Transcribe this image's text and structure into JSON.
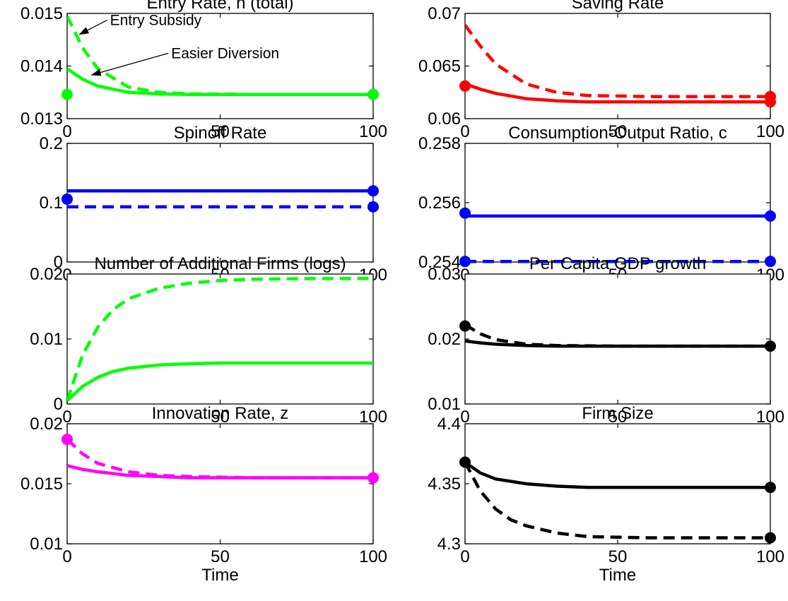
{
  "figure": {
    "xlabel_bottom": "Time"
  },
  "chart_data": [
    {
      "id": "entry-rate",
      "type": "line",
      "title": "Entry Rate, n (total)",
      "xlabel": "",
      "xlim": [
        0,
        100
      ],
      "ylim": [
        0.013,
        0.015
      ],
      "xticks": [
        0,
        50,
        100
      ],
      "xtick_labels": [
        "0",
        "50",
        "100"
      ],
      "yticks": [
        0.013,
        0.014,
        0.015
      ],
      "ytick_labels": [
        "0.013",
        "0.014",
        "0.015"
      ],
      "color": "#00ff00",
      "series": [
        {
          "style": "solid",
          "x": [
            0,
            5,
            10,
            20,
            30,
            40,
            60,
            80,
            100
          ],
          "y": [
            0.01395,
            0.01375,
            0.01362,
            0.0135,
            0.01347,
            0.01346,
            0.01346,
            0.01346,
            0.01346
          ]
        },
        {
          "style": "dashed",
          "x": [
            0,
            5,
            10,
            20,
            30,
            40,
            60,
            80,
            100
          ],
          "y": [
            0.01495,
            0.01435,
            0.01395,
            0.0136,
            0.0135,
            0.01347,
            0.01346,
            0.01346,
            0.01346
          ]
        }
      ],
      "markers": [
        {
          "x": 0,
          "y": 0.01346
        },
        {
          "x": 100,
          "y": 0.01346
        }
      ],
      "annotations": [
        {
          "text": "Entry Subsidy",
          "text_x": 14,
          "text_y": 0.01478,
          "arrow_x": 4,
          "arrow_y": 0.0146
        },
        {
          "text": "Easier Diversion",
          "text_x": 34,
          "text_y": 0.01415,
          "arrow_x": 8,
          "arrow_y": 0.01383
        }
      ]
    },
    {
      "id": "saving-rate",
      "type": "line",
      "title": "Saving Rate",
      "xlabel": "",
      "xlim": [
        0,
        100
      ],
      "ylim": [
        0.06,
        0.07
      ],
      "xticks": [
        0,
        50,
        100
      ],
      "xtick_labels": [
        "0",
        "50",
        "100"
      ],
      "yticks": [
        0.06,
        0.065,
        0.07
      ],
      "ytick_labels": [
        "0.06",
        "0.065",
        "0.07"
      ],
      "color": "#ff0000",
      "series": [
        {
          "style": "solid",
          "x": [
            0,
            5,
            10,
            20,
            30,
            40,
            60,
            80,
            100
          ],
          "y": [
            0.0633,
            0.0628,
            0.0624,
            0.0619,
            0.0617,
            0.0616,
            0.0616,
            0.0616,
            0.0616
          ]
        },
        {
          "style": "dashed",
          "x": [
            0,
            5,
            10,
            20,
            30,
            40,
            60,
            80,
            100
          ],
          "y": [
            0.0689,
            0.0669,
            0.0652,
            0.0633,
            0.0625,
            0.0622,
            0.0621,
            0.0621,
            0.0621
          ]
        }
      ],
      "markers": [
        {
          "x": 0,
          "y": 0.0631
        },
        {
          "x": 100,
          "y": 0.0616
        },
        {
          "x": 100,
          "y": 0.0621
        }
      ],
      "annotations": []
    },
    {
      "id": "spinoff-rate",
      "type": "line",
      "title": "Spinoff Rate",
      "xlabel": "",
      "xlim": [
        0,
        100
      ],
      "ylim": [
        0,
        0.2
      ],
      "xticks": [
        0,
        50,
        100
      ],
      "xtick_labels": [
        "0",
        "50",
        "100"
      ],
      "yticks": [
        0,
        0.1,
        0.2
      ],
      "ytick_labels": [
        "0",
        "0.1",
        "0.2"
      ],
      "color": "#0000ff",
      "series": [
        {
          "style": "solid",
          "x": [
            0,
            100
          ],
          "y": [
            0.12,
            0.12
          ]
        },
        {
          "style": "dashed",
          "x": [
            0,
            100
          ],
          "y": [
            0.093,
            0.093
          ]
        }
      ],
      "markers": [
        {
          "x": 0,
          "y": 0.106
        },
        {
          "x": 100,
          "y": 0.12
        },
        {
          "x": 100,
          "y": 0.093
        }
      ],
      "annotations": []
    },
    {
      "id": "consumption-output",
      "type": "line",
      "title": "Consumption-Output Ratio, c",
      "xlabel": "",
      "xlim": [
        0,
        100
      ],
      "ylim": [
        0.254,
        0.258
      ],
      "xticks": [
        0,
        50,
        100
      ],
      "xtick_labels": [
        "0",
        "50",
        "100"
      ],
      "yticks": [
        0.254,
        0.256,
        0.258
      ],
      "ytick_labels": [
        "0.254",
        "0.256",
        "0.258"
      ],
      "color": "#0000ff",
      "series": [
        {
          "style": "solid",
          "x": [
            0,
            100
          ],
          "y": [
            0.25555,
            0.25555
          ]
        },
        {
          "style": "dashed",
          "x": [
            0,
            100
          ],
          "y": [
            0.25402,
            0.25402
          ]
        }
      ],
      "markers": [
        {
          "x": 0,
          "y": 0.25565
        },
        {
          "x": 100,
          "y": 0.25555
        },
        {
          "x": 0,
          "y": 0.25402
        },
        {
          "x": 100,
          "y": 0.25402
        }
      ],
      "annotations": []
    },
    {
      "id": "additional-firms",
      "type": "line",
      "title": "Number of Additional Firms (logs)",
      "xlabel": "",
      "xlim": [
        0,
        100
      ],
      "ylim": [
        0,
        0.02
      ],
      "xticks": [
        0,
        50,
        100
      ],
      "xtick_labels": [
        "0",
        "50",
        "100"
      ],
      "yticks": [
        0,
        0.01,
        0.02
      ],
      "ytick_labels": [
        "0",
        "0.01",
        "0.02"
      ],
      "color": "#00ff00",
      "series": [
        {
          "style": "solid",
          "x": [
            0,
            5,
            10,
            15,
            20,
            30,
            40,
            50,
            60,
            80,
            100
          ],
          "y": [
            0.0005,
            0.0027,
            0.0041,
            0.005,
            0.0055,
            0.006,
            0.0062,
            0.0063,
            0.0063,
            0.0063,
            0.0063
          ]
        },
        {
          "style": "dashed",
          "x": [
            0,
            5,
            10,
            15,
            20,
            30,
            40,
            50,
            60,
            80,
            100
          ],
          "y": [
            0.0005,
            0.0075,
            0.0118,
            0.0145,
            0.0162,
            0.0178,
            0.0186,
            0.019,
            0.0192,
            0.0193,
            0.0193
          ]
        }
      ],
      "markers": [],
      "annotations": []
    },
    {
      "id": "gdp-growth",
      "type": "line",
      "title": "Per Capita GDP growth",
      "xlabel": "",
      "xlim": [
        0,
        100
      ],
      "ylim": [
        0.01,
        0.03
      ],
      "xticks": [
        0,
        50,
        100
      ],
      "xtick_labels": [
        "0",
        "50",
        "100"
      ],
      "yticks": [
        0.01,
        0.02,
        0.03
      ],
      "ytick_labels": [
        "0.01",
        "0.02",
        "0.03"
      ],
      "color": "#000000",
      "series": [
        {
          "style": "solid",
          "x": [
            0,
            5,
            10,
            20,
            30,
            50,
            100
          ],
          "y": [
            0.0197,
            0.0194,
            0.0192,
            0.019,
            0.0189,
            0.0189,
            0.0189
          ]
        },
        {
          "style": "dashed",
          "x": [
            0,
            5,
            10,
            20,
            30,
            50,
            100
          ],
          "y": [
            0.0222,
            0.0208,
            0.0199,
            0.0192,
            0.019,
            0.0189,
            0.0189
          ]
        }
      ],
      "markers": [
        {
          "x": 0,
          "y": 0.022
        },
        {
          "x": 100,
          "y": 0.0189
        }
      ],
      "annotations": []
    },
    {
      "id": "innovation-rate",
      "type": "line",
      "title": "Innovation Rate, z",
      "xlabel": "Time",
      "xlim": [
        0,
        100
      ],
      "ylim": [
        0.01,
        0.02
      ],
      "xticks": [
        0,
        50,
        100
      ],
      "xtick_labels": [
        "0",
        "50",
        "100"
      ],
      "yticks": [
        0.01,
        0.015,
        0.02
      ],
      "ytick_labels": [
        "0.01",
        "0.015",
        "0.02"
      ],
      "color": "#ff00ff",
      "series": [
        {
          "style": "solid",
          "x": [
            0,
            5,
            10,
            20,
            30,
            40,
            60,
            100
          ],
          "y": [
            0.0165,
            0.0162,
            0.016,
            0.0157,
            0.0156,
            0.0155,
            0.0155,
            0.0155
          ]
        },
        {
          "style": "dashed",
          "x": [
            0,
            5,
            10,
            20,
            30,
            40,
            60,
            100
          ],
          "y": [
            0.0187,
            0.0175,
            0.0167,
            0.016,
            0.0157,
            0.0156,
            0.0155,
            0.0155
          ]
        }
      ],
      "markers": [
        {
          "x": 0,
          "y": 0.0187
        },
        {
          "x": 100,
          "y": 0.0155
        }
      ],
      "annotations": []
    },
    {
      "id": "firm-size",
      "type": "line",
      "title": "Firm Size",
      "xlabel": "Time",
      "xlim": [
        0,
        100
      ],
      "ylim": [
        4.3,
        4.4
      ],
      "xticks": [
        0,
        50,
        100
      ],
      "xtick_labels": [
        "0",
        "50",
        "100"
      ],
      "yticks": [
        4.3,
        4.35,
        4.4
      ],
      "ytick_labels": [
        "4.3",
        "4.35",
        "4.4"
      ],
      "color": "#000000",
      "series": [
        {
          "style": "solid",
          "x": [
            0,
            5,
            10,
            20,
            30,
            40,
            60,
            80,
            100
          ],
          "y": [
            4.368,
            4.359,
            4.354,
            4.35,
            4.348,
            4.347,
            4.347,
            4.347,
            4.347
          ]
        },
        {
          "style": "dashed",
          "x": [
            0,
            5,
            10,
            15,
            20,
            30,
            40,
            60,
            80,
            100
          ],
          "y": [
            4.368,
            4.344,
            4.329,
            4.32,
            4.315,
            4.309,
            4.306,
            4.305,
            4.305,
            4.305
          ]
        }
      ],
      "markers": [
        {
          "x": 0,
          "y": 4.368
        },
        {
          "x": 100,
          "y": 4.347
        },
        {
          "x": 100,
          "y": 4.305
        }
      ],
      "annotations": []
    }
  ]
}
